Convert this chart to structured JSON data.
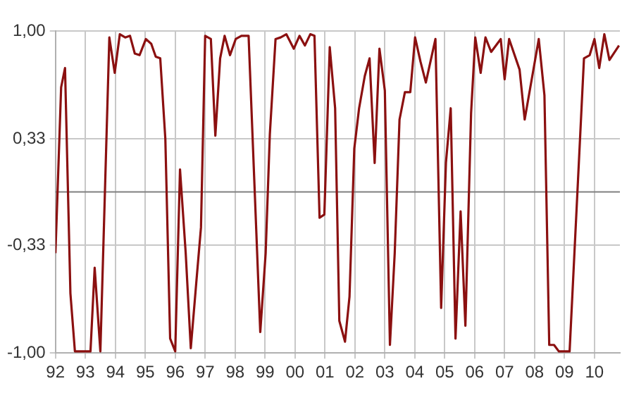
{
  "chart_data": {
    "type": "line",
    "color": "#8b1010",
    "x": [
      1992.0,
      1992.19,
      1992.32,
      1992.5,
      1992.65,
      1993.17,
      1993.31,
      1993.5,
      1993.8,
      1993.98,
      1994.15,
      1994.33,
      1994.49,
      1994.65,
      1994.81,
      1995.02,
      1995.2,
      1995.35,
      1995.5,
      1995.67,
      1995.83,
      1996.0,
      1996.16,
      1996.35,
      1996.52,
      1996.7,
      1996.86,
      1997.0,
      1997.19,
      1997.34,
      1997.5,
      1997.65,
      1997.83,
      1998.02,
      1998.21,
      1998.45,
      1998.84,
      1999.02,
      1999.16,
      1999.35,
      1999.52,
      1999.71,
      1999.96,
      2000.15,
      2000.33,
      2000.51,
      2000.65,
      2000.82,
      2000.98,
      2001.16,
      2001.34,
      2001.48,
      2001.67,
      2001.82,
      2001.98,
      2002.14,
      2002.33,
      2002.49,
      2002.66,
      2002.82,
      2003.0,
      2003.17,
      2003.33,
      2003.49,
      2003.67,
      2003.85,
      2004.01,
      2004.19,
      2004.37,
      2004.69,
      2004.88,
      2005.04,
      2005.2,
      2005.36,
      2005.53,
      2005.69,
      2005.88,
      2006.02,
      2006.2,
      2006.36,
      2006.55,
      2006.87,
      2007.0,
      2007.15,
      2007.5,
      2007.67,
      2008.14,
      2008.33,
      2008.49,
      2008.65,
      2008.81,
      2009.17,
      2009.65,
      2009.84,
      2010.0,
      2010.16,
      2010.33,
      2010.5,
      2010.82
    ],
    "values": [
      -0.38,
      0.65,
      0.77,
      -0.63,
      -0.99,
      -0.99,
      -0.47,
      -0.99,
      0.96,
      0.74,
      0.98,
      0.96,
      0.97,
      0.86,
      0.85,
      0.95,
      0.92,
      0.84,
      0.83,
      0.33,
      -0.91,
      -0.99,
      0.14,
      -0.38,
      -0.97,
      -0.57,
      -0.22,
      0.97,
      0.95,
      0.35,
      0.83,
      0.97,
      0.85,
      0.95,
      0.97,
      0.97,
      -0.87,
      -0.38,
      0.36,
      0.95,
      0.96,
      0.98,
      0.89,
      0.97,
      0.91,
      0.98,
      0.97,
      -0.16,
      -0.14,
      0.9,
      0.52,
      -0.8,
      -0.93,
      -0.65,
      0.27,
      0.52,
      0.72,
      0.83,
      0.18,
      0.89,
      0.63,
      -0.95,
      -0.38,
      0.45,
      0.62,
      0.62,
      0.96,
      0.81,
      0.68,
      0.95,
      -0.72,
      0.18,
      0.52,
      -0.91,
      -0.12,
      -0.83,
      0.49,
      0.96,
      0.74,
      0.96,
      0.87,
      0.95,
      0.7,
      0.95,
      0.76,
      0.45,
      0.95,
      0.6,
      -0.95,
      -0.95,
      -0.99,
      -0.99,
      0.83,
      0.85,
      0.95,
      0.77,
      0.98,
      0.82,
      0.91
    ],
    "xlim": [
      1992,
      2010.85
    ],
    "xticks": [
      {
        "value": 1992,
        "label": "92"
      },
      {
        "value": 1993,
        "label": "93"
      },
      {
        "value": 1994,
        "label": "94"
      },
      {
        "value": 1995,
        "label": "95"
      },
      {
        "value": 1996,
        "label": "96"
      },
      {
        "value": 1997,
        "label": "97"
      },
      {
        "value": 1998,
        "label": "98"
      },
      {
        "value": 1999,
        "label": "99"
      },
      {
        "value": 2000,
        "label": "00"
      },
      {
        "value": 2001,
        "label": "01"
      },
      {
        "value": 2002,
        "label": "02"
      },
      {
        "value": 2003,
        "label": "03"
      },
      {
        "value": 2004,
        "label": "04"
      },
      {
        "value": 2005,
        "label": "05"
      },
      {
        "value": 2006,
        "label": "06"
      },
      {
        "value": 2007,
        "label": "07"
      },
      {
        "value": 2008,
        "label": "08"
      },
      {
        "value": 2009,
        "label": "09"
      },
      {
        "value": 2010,
        "label": "10"
      }
    ],
    "ylim": [
      -1,
      1
    ],
    "yticks": [
      {
        "value": -1,
        "label": "-1,00"
      },
      {
        "value": -0.33,
        "label": "-0,33"
      },
      {
        "value": 0.33,
        "label": "0,33"
      },
      {
        "value": 1,
        "label": "1,00"
      }
    ],
    "ref_lines": [
      {
        "axis": "y",
        "value": 0,
        "color": "#808080"
      }
    ],
    "grid": true,
    "legend": false,
    "marker": "none",
    "line_style": "solid"
  }
}
